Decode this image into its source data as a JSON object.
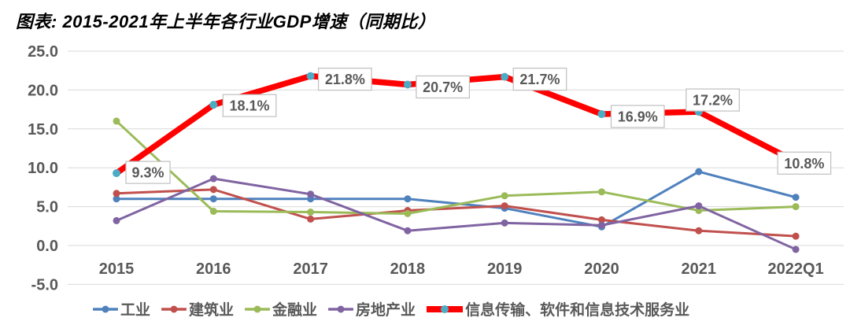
{
  "title": "图表: 2015-2021年上半年各行业GDP增速（同期比）",
  "chart_data": {
    "type": "line",
    "title": "图表: 2015-2021年上半年各行业GDP增速（同期比）",
    "categories": [
      "2015",
      "2016",
      "2017",
      "2018",
      "2019",
      "2020",
      "2021",
      "2022Q1"
    ],
    "series": [
      {
        "name": "工业",
        "color": "#4F81BD",
        "thick": false,
        "values": [
          6.0,
          6.0,
          6.0,
          6.0,
          4.8,
          2.4,
          9.5,
          6.2
        ]
      },
      {
        "name": "建筑业",
        "color": "#C0504D",
        "thick": false,
        "values": [
          6.7,
          7.2,
          3.4,
          4.5,
          5.1,
          3.3,
          1.9,
          1.2
        ]
      },
      {
        "name": "金融业",
        "color": "#9BBB59",
        "thick": false,
        "values": [
          16.0,
          4.4,
          4.3,
          4.1,
          6.4,
          6.9,
          4.5,
          5.0
        ]
      },
      {
        "name": "房地产业",
        "color": "#8064A2",
        "thick": false,
        "values": [
          3.2,
          8.6,
          6.6,
          1.9,
          2.9,
          2.6,
          5.1,
          -0.5
        ]
      },
      {
        "name": "信息传输、软件和信息技术服务业",
        "color": "#FF0000",
        "marker_color": "#4BACC6",
        "thick": true,
        "values": [
          9.3,
          18.1,
          21.8,
          20.7,
          21.7,
          16.9,
          17.2,
          10.8
        ],
        "labels": [
          "9.3%",
          "18.1%",
          "21.8%",
          "20.7%",
          "21.7%",
          "16.9%",
          "17.2%",
          "10.8%"
        ],
        "label_offsets": [
          [
            12,
            -15
          ],
          [
            12,
            -13
          ],
          [
            10,
            -10
          ],
          [
            11,
            -11
          ],
          [
            11,
            -11
          ],
          [
            12,
            -11
          ],
          [
            -16,
            -29
          ],
          [
            -23,
            -12
          ]
        ]
      }
    ],
    "y_axis": {
      "min": -5,
      "max": 25,
      "ticks": [
        25,
        20,
        15,
        10,
        5,
        0,
        -5
      ],
      "tick_labels": [
        "25.0",
        "20.0",
        "15.0",
        "10.0",
        "5.0",
        "0.0",
        "-5.0"
      ]
    },
    "grid": true,
    "legend_position": "bottom",
    "colors": {
      "grid": "#D9D9D9",
      "axis_text": "#595959",
      "data_label_text": "#595959",
      "data_label_border": "#BFBFBF",
      "background": "#FFFFFF"
    }
  }
}
